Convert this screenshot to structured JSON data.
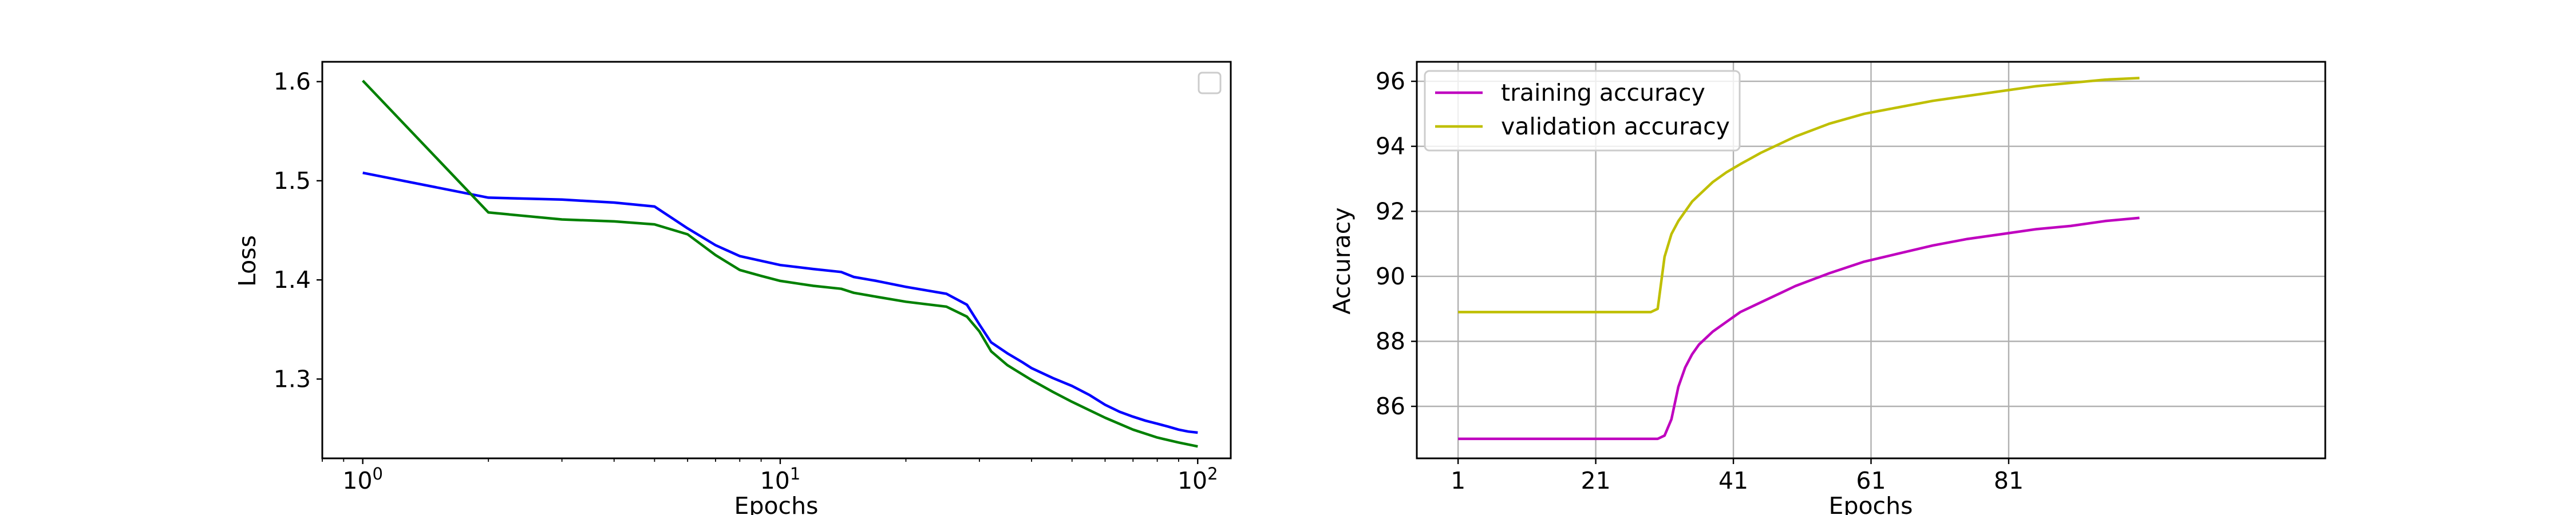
{
  "chart_data": [
    {
      "type": "line",
      "xscale": "log",
      "xlim": [
        0.8,
        120
      ],
      "ylim": [
        1.22,
        1.62
      ],
      "xticks": [
        1,
        10,
        100
      ],
      "xtick_labels": [
        {
          "base": "10",
          "exp": "0"
        },
        {
          "base": "10",
          "exp": "1"
        },
        {
          "base": "10",
          "exp": "2"
        }
      ],
      "yticks": [
        1.3,
        1.4,
        1.5,
        1.6
      ],
      "ytick_labels": [
        "1.3",
        "1.4",
        "1.5",
        "1.6"
      ],
      "xlabel": "Epochs",
      "ylabel": "Loss",
      "grid": false,
      "legend": {
        "position": "top-right",
        "entries": []
      },
      "series": [
        {
          "color": "#0000ff",
          "x": [
            1,
            2,
            3,
            4,
            5,
            6,
            7,
            8,
            10,
            12,
            14,
            15,
            17,
            20,
            25,
            28,
            30,
            32,
            35,
            38,
            40,
            45,
            50,
            55,
            60,
            65,
            70,
            75,
            80,
            85,
            90,
            95,
            100
          ],
          "y": [
            1.508,
            1.483,
            1.481,
            1.478,
            1.474,
            1.452,
            1.435,
            1.424,
            1.415,
            1.411,
            1.408,
            1.403,
            1.399,
            1.393,
            1.386,
            1.375,
            1.355,
            1.337,
            1.326,
            1.317,
            1.311,
            1.301,
            1.293,
            1.284,
            1.274,
            1.267,
            1.262,
            1.258,
            1.255,
            1.252,
            1.249,
            1.247,
            1.246
          ]
        },
        {
          "color": "#008000",
          "x": [
            1,
            2,
            3,
            4,
            5,
            6,
            7,
            8,
            9,
            10,
            12,
            14,
            15,
            17,
            20,
            25,
            28,
            30,
            32,
            35,
            40,
            45,
            50,
            60,
            70,
            80,
            90,
            100
          ],
          "y": [
            1.601,
            1.468,
            1.461,
            1.459,
            1.456,
            1.446,
            1.425,
            1.41,
            1.404,
            1.399,
            1.394,
            1.391,
            1.387,
            1.383,
            1.378,
            1.373,
            1.363,
            1.348,
            1.328,
            1.314,
            1.299,
            1.287,
            1.277,
            1.261,
            1.249,
            1.241,
            1.236,
            1.232
          ]
        }
      ]
    },
    {
      "type": "line",
      "xlim": [
        -5,
        127
      ],
      "ylim": [
        84.4,
        96.6
      ],
      "xticks": [
        1,
        21,
        41,
        61,
        81
      ],
      "xtick_labels": [
        "1",
        "21",
        "41",
        "61",
        "81"
      ],
      "yticks": [
        86,
        88,
        90,
        92,
        94,
        96
      ],
      "ytick_labels": [
        "86",
        "88",
        "90",
        "92",
        "94",
        "96"
      ],
      "xlabel": "Epochs",
      "ylabel": "Accuracy",
      "grid": true,
      "legend": {
        "position": "top-left",
        "entries": [
          {
            "label": "training accuracy",
            "color": "#bf00bf"
          },
          {
            "label": "validation accuracy",
            "color": "#bfbf00"
          }
        ]
      },
      "series": [
        {
          "name": "training accuracy",
          "color": "#bf00bf",
          "x": [
            1,
            10,
            20,
            30,
            31,
            32,
            33,
            34,
            35,
            36,
            37,
            38,
            40,
            42,
            45,
            48,
            50,
            55,
            60,
            65,
            70,
            75,
            80,
            85,
            90,
            95,
            100
          ],
          "y": [
            85.0,
            85.0,
            85.0,
            85.0,
            85.1,
            85.6,
            86.6,
            87.2,
            87.6,
            87.9,
            88.1,
            88.3,
            88.6,
            88.9,
            89.2,
            89.5,
            89.7,
            90.1,
            90.45,
            90.7,
            90.95,
            91.15,
            91.3,
            91.45,
            91.55,
            91.7,
            91.8
          ]
        },
        {
          "name": "validation accuracy",
          "color": "#bfbf00",
          "x": [
            1,
            10,
            20,
            29,
            30,
            31,
            32,
            33,
            34,
            35,
            36,
            38,
            40,
            42,
            45,
            48,
            50,
            55,
            60,
            65,
            70,
            75,
            80,
            85,
            90,
            95,
            100
          ],
          "y": [
            88.9,
            88.9,
            88.9,
            88.9,
            89.0,
            90.6,
            91.3,
            91.7,
            92.0,
            92.3,
            92.5,
            92.9,
            93.2,
            93.45,
            93.8,
            94.1,
            94.3,
            94.7,
            95.0,
            95.2,
            95.4,
            95.55,
            95.7,
            95.85,
            95.95,
            96.05,
            96.1
          ]
        }
      ]
    }
  ]
}
